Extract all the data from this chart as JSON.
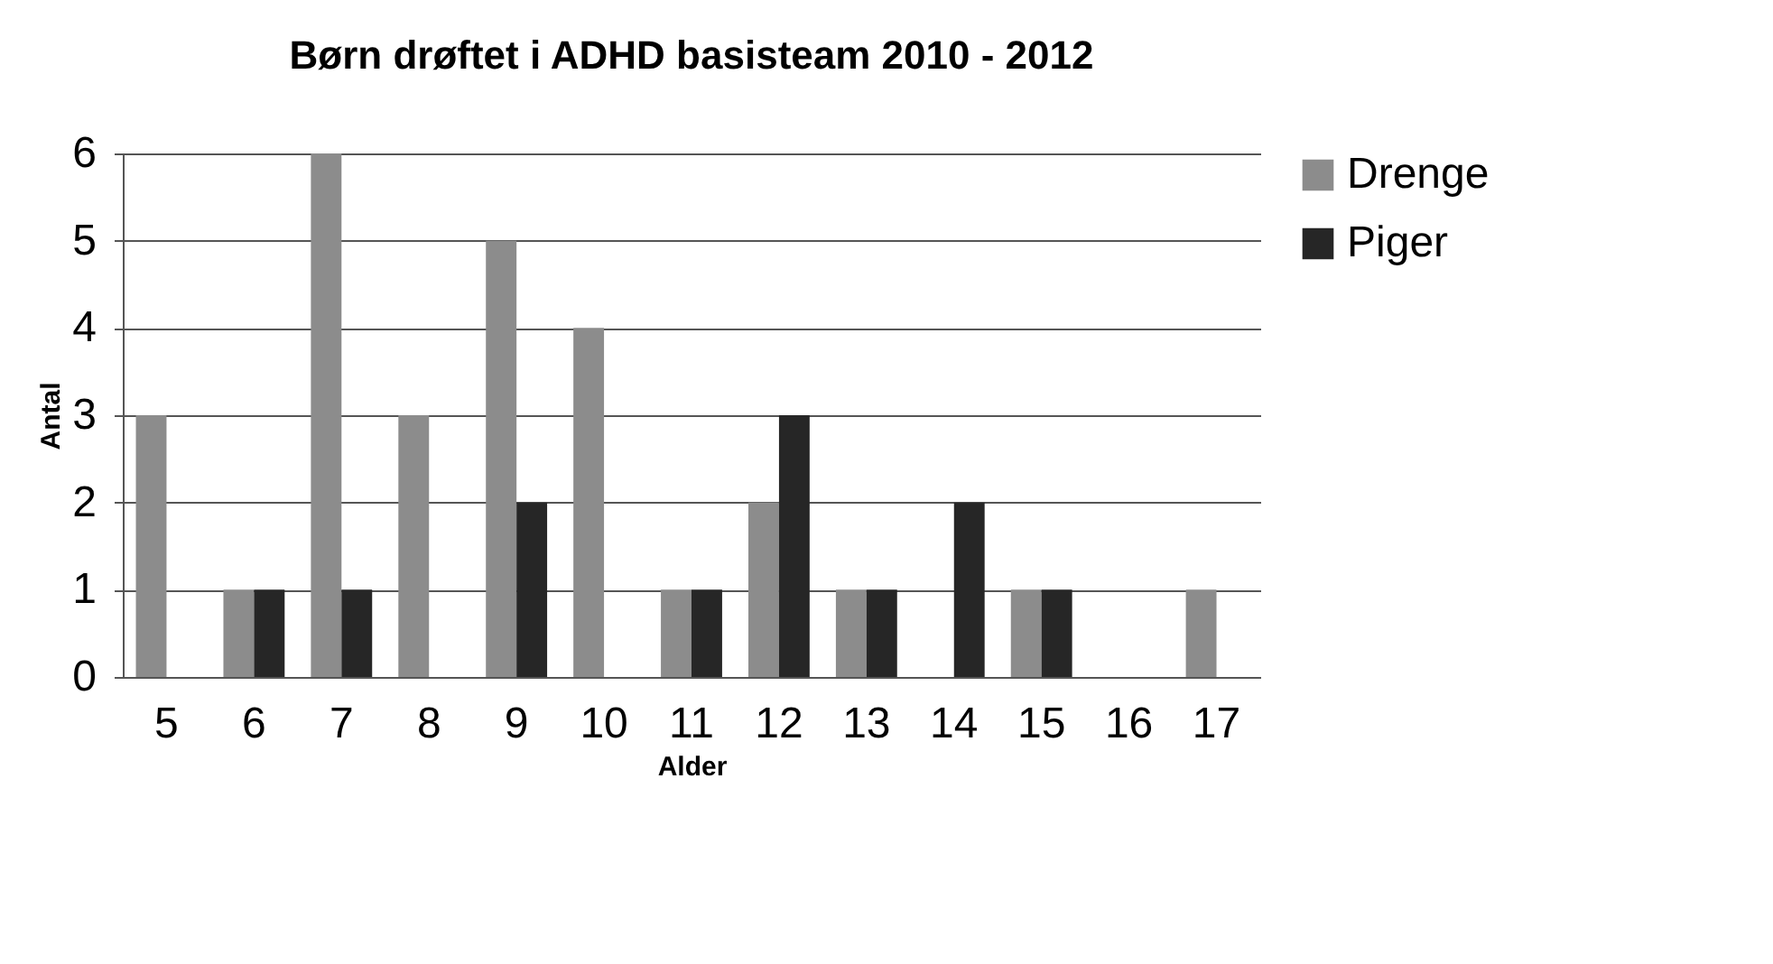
{
  "chart_data": {
    "type": "bar",
    "title": "Børn drøftet i ADHD basisteam 2010 - 2012",
    "xlabel": "Alder",
    "ylabel": "Antal",
    "categories": [
      "5",
      "6",
      "7",
      "8",
      "9",
      "10",
      "11",
      "12",
      "13",
      "14",
      "15",
      "16",
      "17"
    ],
    "series": [
      {
        "name": "Drenge",
        "color": "#8c8c8c",
        "values": [
          3,
          1,
          6,
          3,
          5,
          4,
          1,
          2,
          1,
          0,
          1,
          0,
          1
        ]
      },
      {
        "name": "Piger",
        "color": "#262626",
        "values": [
          0,
          1,
          1,
          0,
          2,
          0,
          1,
          3,
          1,
          2,
          1,
          0,
          0
        ]
      }
    ],
    "ylim": [
      0,
      6
    ],
    "yticks": [
      0,
      1,
      2,
      3,
      4,
      5,
      6
    ],
    "grid": "y",
    "legend": "right"
  }
}
